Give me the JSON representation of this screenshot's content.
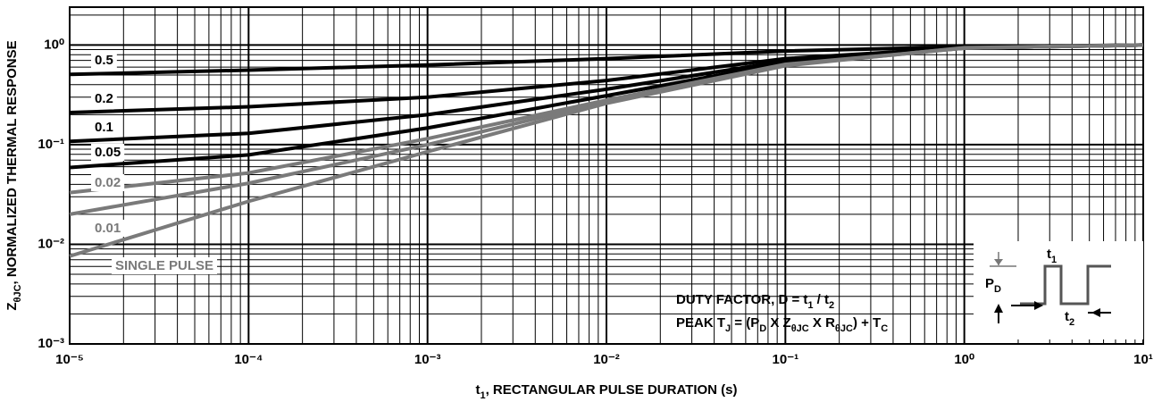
{
  "chart_data": {
    "type": "line",
    "title_parts": [
      "Z",
      "θJC",
      ",  NORMALIZED THERMAL RESPONSE"
    ],
    "xlabel_parts": [
      "t",
      "1",
      ",  RECTANGULAR PULSE DURATION (s)"
    ],
    "log_x": true,
    "log_y": true,
    "grid": true,
    "xlim": [
      1e-05,
      10
    ],
    "ylim": [
      0.001,
      2.4
    ],
    "xticks": [
      {
        "value": 1e-05,
        "label": "10⁻⁵"
      },
      {
        "value": 0.0001,
        "label": "10⁻⁴"
      },
      {
        "value": 0.001,
        "label": "10⁻³"
      },
      {
        "value": 0.01,
        "label": "10⁻²"
      },
      {
        "value": 0.1,
        "label": "10⁻¹"
      },
      {
        "value": 1,
        "label": "10⁰"
      },
      {
        "value": 10,
        "label": "10¹"
      }
    ],
    "yticks": [
      {
        "value": 0.001,
        "label": "10⁻³"
      },
      {
        "value": 0.01,
        "label": "10⁻²"
      },
      {
        "value": 0.1,
        "label": "10⁻¹"
      },
      {
        "value": 1,
        "label": "10⁰"
      }
    ],
    "minor_xticks": [
      2e-05,
      3e-05,
      4e-05,
      5e-05,
      6e-05,
      7e-05,
      8e-05,
      9e-05,
      0.0002,
      0.0003,
      0.0004,
      0.0005,
      0.0006,
      0.0007,
      0.0008,
      0.0009,
      0.002,
      0.003,
      0.004,
      0.005,
      0.006,
      0.007,
      0.008,
      0.009,
      0.02,
      0.03,
      0.04,
      0.05,
      0.06,
      0.07,
      0.08,
      0.09,
      0.2,
      0.3,
      0.4,
      0.5,
      0.6,
      0.7,
      0.8,
      0.9,
      2,
      3,
      4,
      5,
      6,
      7,
      8,
      9
    ],
    "minor_yticks": [
      0.002,
      0.003,
      0.004,
      0.005,
      0.006,
      0.007,
      0.008,
      0.009,
      0.02,
      0.03,
      0.04,
      0.05,
      0.06,
      0.07,
      0.08,
      0.09,
      0.2,
      0.3,
      0.4,
      0.5,
      0.6,
      0.7,
      0.8,
      0.9,
      2
    ],
    "x": [
      1e-05,
      0.0001,
      0.001,
      0.01,
      0.1,
      1,
      10
    ],
    "series": [
      {
        "name": "0.5",
        "color": "#000000",
        "values": [
          0.507,
          0.56,
          0.63,
          0.73,
          0.87,
          0.96,
          1.0
        ]
      },
      {
        "name": "0.2",
        "color": "#000000",
        "values": [
          0.21,
          0.24,
          0.3,
          0.44,
          0.73,
          0.94,
          1.0
        ]
      },
      {
        "name": "0.1",
        "color": "#000000",
        "values": [
          0.108,
          0.13,
          0.2,
          0.36,
          0.69,
          0.93,
          1.0
        ]
      },
      {
        "name": "0.05",
        "color": "#000000",
        "values": [
          0.059,
          0.079,
          0.147,
          0.31,
          0.66,
          0.93,
          1.0
        ]
      },
      {
        "name": "0.02",
        "color": "#7a7a7a",
        "values": [
          0.033,
          0.052,
          0.115,
          0.28,
          0.64,
          0.93,
          1.0
        ]
      },
      {
        "name": "0.01",
        "color": "#7a7a7a",
        "values": [
          0.02,
          0.041,
          0.1,
          0.27,
          0.63,
          0.93,
          1.0
        ]
      },
      {
        "name": "SINGLE PULSE",
        "color": "#7a7a7a",
        "values": [
          0.0076,
          0.027,
          0.085,
          0.26,
          0.62,
          0.94,
          1.0
        ]
      }
    ],
    "annotations": [
      {
        "parts": [
          "DUTY FACTOR, D = t",
          "1",
          " / t",
          "2"
        ]
      },
      {
        "parts": [
          "PEAK T",
          "J",
          " = (P",
          "D",
          " X Z",
          "θJC",
          " X R",
          "θJC",
          ") + T",
          "C"
        ]
      }
    ],
    "pulse_labels": [
      {
        "parts": [
          "t",
          "1"
        ]
      },
      {
        "parts": [
          "P",
          "D"
        ]
      },
      {
        "parts": [
          "t",
          "2"
        ]
      }
    ]
  }
}
